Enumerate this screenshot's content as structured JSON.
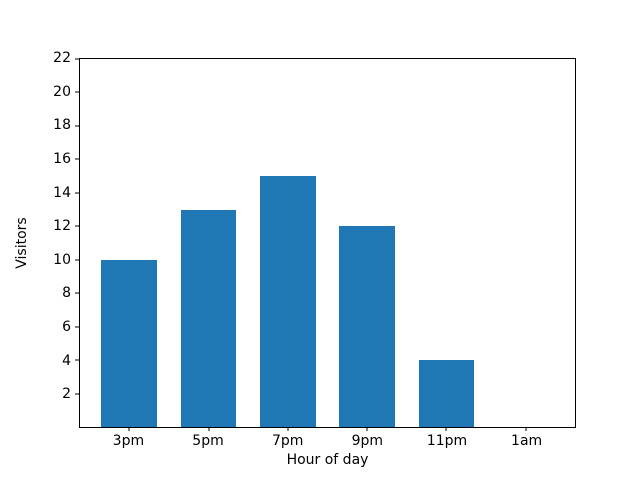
{
  "chart_data": {
    "type": "bar",
    "title": "",
    "xlabel": "Hour of day",
    "ylabel": "Visitors",
    "categories": [
      "3pm",
      "5pm",
      "7pm",
      "9pm",
      "11pm",
      "1am"
    ],
    "values": [
      10,
      13,
      15,
      12,
      4,
      0
    ],
    "ylim": [
      0,
      22
    ],
    "yticks": [
      2,
      4,
      6,
      8,
      10,
      12,
      14,
      16,
      18,
      20,
      22
    ],
    "xlim": [
      -0.62,
      5.62
    ],
    "bar_width": 0.7,
    "bar_color": "#1f77b4",
    "background_color": "#ffffff",
    "axis_color": "#000000",
    "grid": false,
    "legend": null
  }
}
